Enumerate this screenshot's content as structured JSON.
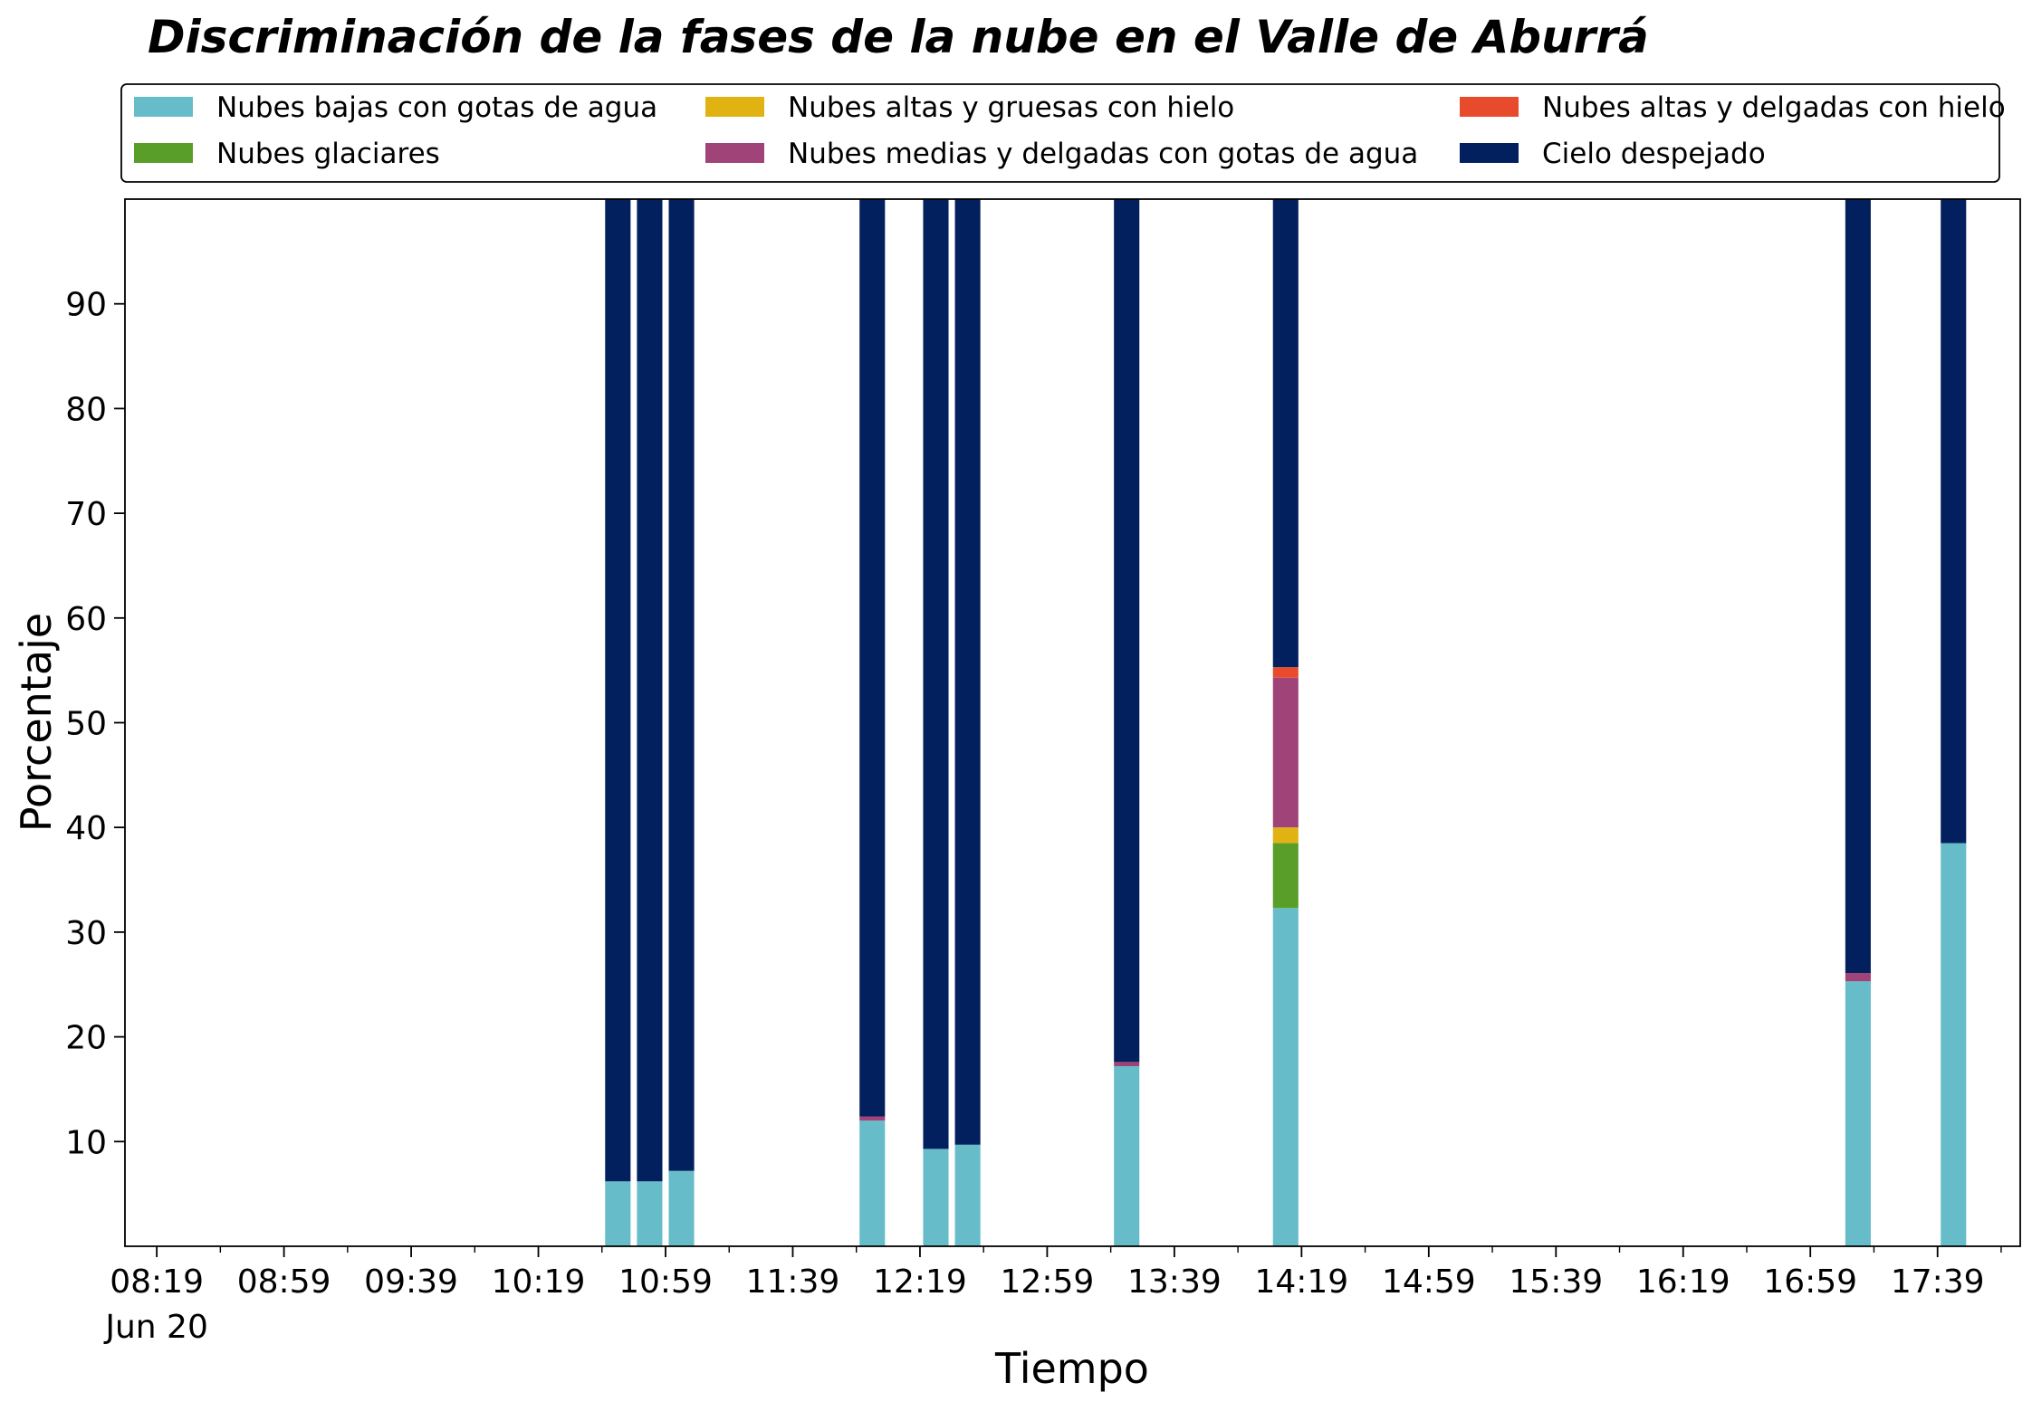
{
  "chart_data": {
    "type": "bar",
    "stacked": true,
    "title": "Discriminación de la fases de la nube en el Valle de Aburrá",
    "xlabel": "Tiempo",
    "ylabel": "Porcentaje",
    "ylim": [
      0,
      100
    ],
    "y_ticks": [
      10,
      20,
      30,
      40,
      50,
      60,
      70,
      80,
      90
    ],
    "x_time_range": [
      "08:09",
      "18:05"
    ],
    "x_tick_labels": [
      "08:19",
      "08:59",
      "09:39",
      "10:19",
      "10:59",
      "11:39",
      "12:19",
      "12:59",
      "13:39",
      "14:19",
      "14:59",
      "15:39",
      "16:19",
      "16:59",
      "17:39"
    ],
    "x_tick_date": "Jun 20",
    "minor_tick_step_minutes": 20,
    "bar_width_minutes": 8,
    "legend_position": "top",
    "grid": false,
    "times": [
      "10:44",
      "10:54",
      "11:04",
      "12:04",
      "12:24",
      "12:34",
      "13:24",
      "14:14",
      "17:14",
      "17:44"
    ],
    "series": [
      {
        "name": "Nubes bajas con gotas de agua",
        "color": "#66bdc9",
        "values": [
          6.2,
          6.2,
          7.2,
          12.0,
          9.3,
          9.7,
          17.2,
          32.3,
          25.3,
          38.5
        ]
      },
      {
        "name": "Nubes glaciares",
        "color": "#5a9e2a",
        "values": [
          0,
          0,
          0,
          0,
          0,
          0,
          0,
          6.2,
          0,
          0
        ]
      },
      {
        "name": "Nubes altas y gruesas con hielo",
        "color": "#e0b313",
        "values": [
          0,
          0,
          0,
          0,
          0,
          0,
          0,
          1.5,
          0,
          0
        ]
      },
      {
        "name": "Nubes medias y delgadas con gotas de agua",
        "color": "#a04378",
        "values": [
          0,
          0,
          0,
          0.4,
          0,
          0,
          0.4,
          14.3,
          0.8,
          0
        ]
      },
      {
        "name": "Nubes altas y delgadas con hielo",
        "color": "#e84a2c",
        "values": [
          0,
          0,
          0,
          0,
          0,
          0,
          0,
          1.0,
          0,
          0
        ]
      },
      {
        "name": "Cielo despejado",
        "color": "#03205e",
        "values": [
          93.8,
          93.8,
          92.8,
          87.6,
          90.7,
          90.3,
          82.4,
          44.7,
          73.9,
          61.5
        ]
      }
    ]
  }
}
